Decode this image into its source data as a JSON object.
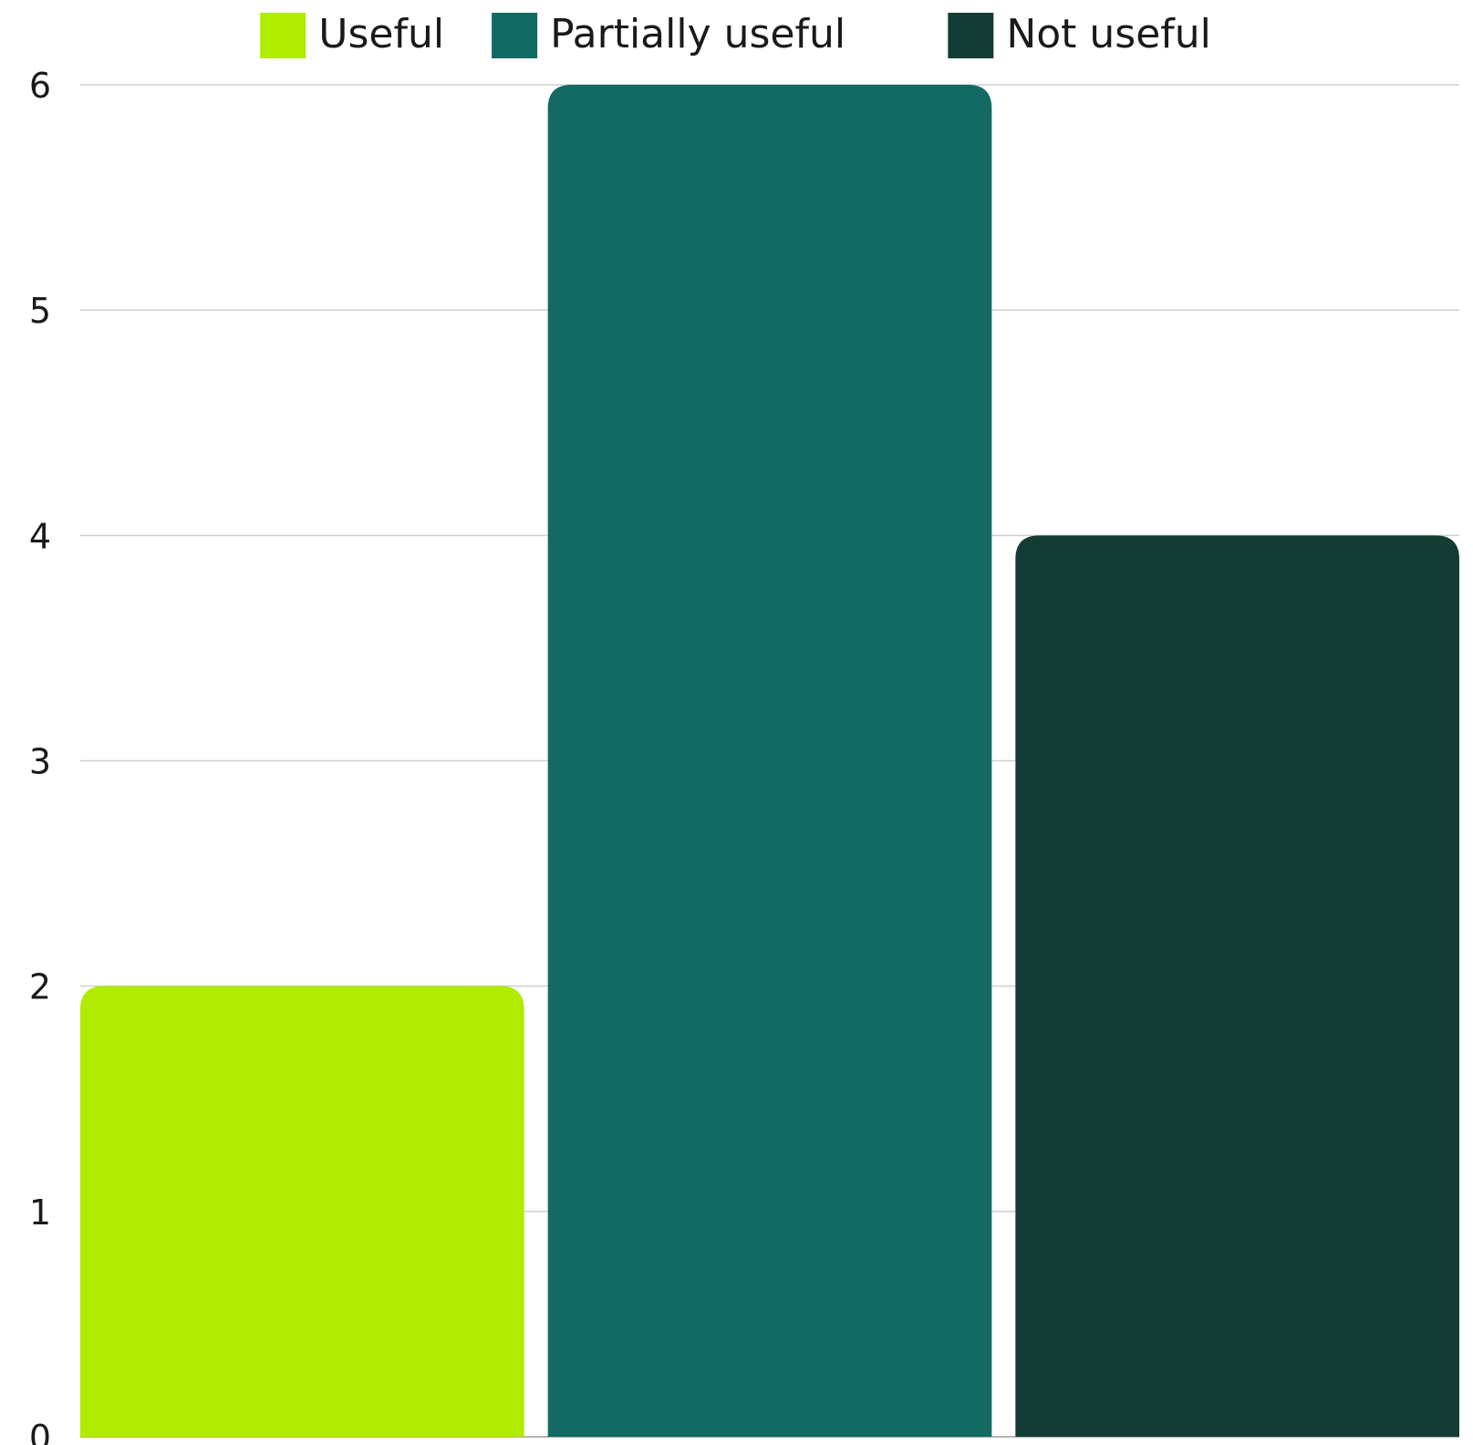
{
  "chart_data": {
    "type": "bar",
    "title": "",
    "xlabel": "",
    "ylabel": "",
    "ylim": [
      0,
      6
    ],
    "yticks": [
      0,
      1,
      2,
      3,
      4,
      5,
      6
    ],
    "grid": true,
    "legend_position": "top-center",
    "series": [
      {
        "name": "Useful",
        "value": 2,
        "color": "#b0eb00"
      },
      {
        "name": "Partially useful",
        "value": 6,
        "color": "#126a62"
      },
      {
        "name": "Not useful",
        "value": 4,
        "color": "#133d34"
      }
    ]
  }
}
